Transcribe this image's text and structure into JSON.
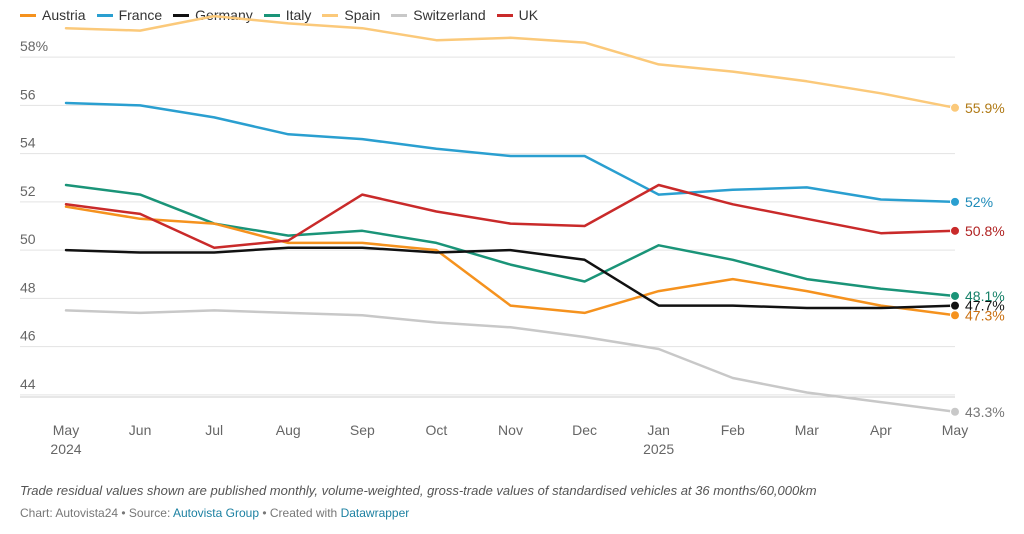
{
  "chart_data": {
    "type": "line",
    "x": [
      "May",
      "Jun",
      "Jul",
      "Aug",
      "Sep",
      "Oct",
      "Nov",
      "Dec",
      "Jan",
      "Feb",
      "Mar",
      "Apr",
      "May"
    ],
    "year_labels": [
      {
        "index": 0,
        "label": "2024"
      },
      {
        "index": 8,
        "label": "2025"
      }
    ],
    "y_ticks": [
      {
        "value": 44,
        "label": "44"
      },
      {
        "value": 46,
        "label": "46"
      },
      {
        "value": 48,
        "label": "48"
      },
      {
        "value": 50,
        "label": "50"
      },
      {
        "value": 52,
        "label": "52"
      },
      {
        "value": 54,
        "label": "54"
      },
      {
        "value": 56,
        "label": "56"
      },
      {
        "value": 58,
        "label": "58%"
      }
    ],
    "ylim": [
      43,
      59
    ],
    "grid": true,
    "legend_position": "top-left",
    "series": [
      {
        "name": "Austria",
        "color": "#f5921e",
        "label_color": "#c96f10",
        "end_label": "47.3%",
        "values": [
          51.8,
          51.3,
          51.1,
          50.3,
          50.3,
          50.0,
          47.7,
          47.4,
          48.3,
          48.8,
          48.3,
          47.7,
          47.3
        ]
      },
      {
        "name": "France",
        "color": "#2a9fd0",
        "label_color": "#1d8ab8",
        "end_label": "52%",
        "values": [
          56.1,
          56.0,
          55.5,
          54.8,
          54.6,
          54.2,
          53.9,
          53.9,
          52.3,
          52.5,
          52.6,
          52.1,
          52.0
        ]
      },
      {
        "name": "Germany",
        "color": "#111111",
        "label_color": "#111111",
        "end_label": "47.7%",
        "values": [
          50.0,
          49.9,
          49.9,
          50.1,
          50.1,
          49.9,
          50.0,
          49.6,
          47.7,
          47.7,
          47.6,
          47.6,
          47.7
        ]
      },
      {
        "name": "Italy",
        "color": "#1a9478",
        "label_color": "#168068",
        "end_label": "48.1%",
        "values": [
          52.7,
          52.3,
          51.1,
          50.6,
          50.8,
          50.3,
          49.4,
          48.7,
          50.2,
          49.6,
          48.8,
          48.4,
          48.1
        ]
      },
      {
        "name": "Spain",
        "color": "#fbc97a",
        "label_color": "#b07a16",
        "end_label": "55.9%",
        "values": [
          59.2,
          59.1,
          59.7,
          59.4,
          59.2,
          58.7,
          58.8,
          58.6,
          57.7,
          57.4,
          57.0,
          56.5,
          55.9
        ]
      },
      {
        "name": "Switzerland",
        "color": "#c8c8c8",
        "label_color": "#777777",
        "end_label": "43.3%",
        "values": [
          47.5,
          47.4,
          47.5,
          47.4,
          47.3,
          47.0,
          46.8,
          46.4,
          45.9,
          44.7,
          44.1,
          43.7,
          43.3
        ]
      },
      {
        "name": "UK",
        "color": "#c92a2a",
        "label_color": "#b02222",
        "end_label": "50.8%",
        "values": [
          51.9,
          51.5,
          50.1,
          50.4,
          52.3,
          51.6,
          51.1,
          51.0,
          52.7,
          51.9,
          51.3,
          50.7,
          50.8
        ]
      }
    ]
  },
  "footer": {
    "note": "Trade residual values shown are published monthly, volume-weighted, gross-trade values of standardised vehicles at 36 months/60,000km",
    "chart_prefix": "Chart: Autovista24 • Source: ",
    "source_link": "Autovista Group",
    "created_prefix": " • Created with ",
    "created_link": "Datawrapper"
  }
}
